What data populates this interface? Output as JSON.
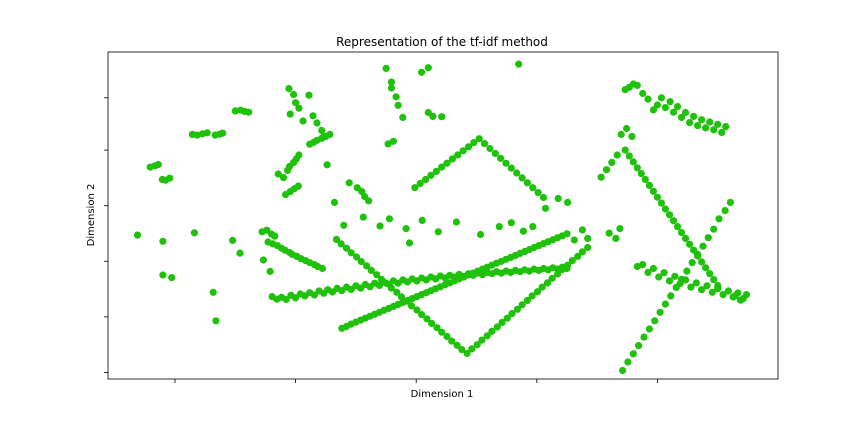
{
  "chart_data": {
    "type": "scatter",
    "title": "Representation of the tf-idf method",
    "xlabel": "Dimension 1",
    "ylabel": "Dimension 2",
    "xlim": [
      0,
      100
    ],
    "ylim": [
      0,
      100
    ],
    "x_tick_values": [
      10,
      28,
      46,
      64,
      82
    ],
    "y_tick_values": [
      2,
      19,
      36,
      53,
      70,
      86
    ],
    "x_tick_labels": [
      "",
      "",
      "",
      "",
      ""
    ],
    "y_tick_labels": [
      "",
      "",
      "",
      "",
      "",
      ""
    ],
    "grid": false,
    "point_color": "#1fc10a",
    "series": [
      {
        "name": "",
        "x": [
          41.5,
          42.3,
          46.8,
          47.8,
          61.3,
          42.3,
          43.0,
          43.3,
          44.0,
          47.8,
          48.5,
          49.8,
          41.8,
          42.6,
          27.0,
          27.7,
          28.0,
          27.2,
          28.5,
          30.0,
          30.6,
          31.2,
          31.9,
          32.2,
          29.1,
          19.0,
          19.8,
          20.4,
          21.0,
          12.6,
          13.3,
          14.1,
          14.8,
          16.0,
          16.7,
          17.1,
          6.3,
          7.0,
          7.5,
          8.1,
          8.6,
          9.2,
          30.1,
          30.7,
          31.2,
          31.9,
          32.5,
          33.1,
          25.4,
          26.2,
          26.8,
          27.1,
          27.7,
          28.1,
          28.5,
          26.5,
          27.2,
          27.8,
          28.4,
          32.7,
          36.0,
          37.2,
          37.9,
          38.3,
          38.9,
          23.0,
          23.7,
          24.4,
          24.9,
          23.9,
          24.6,
          25.3,
          25.9,
          26.4,
          27.1,
          27.5,
          28.2,
          28.8,
          29.5,
          30.1,
          30.8,
          31.3,
          32.0,
          16.1,
          15.7,
          9.5,
          8.2,
          4.4,
          8.2,
          18.6,
          19.7,
          23.2,
          24.2,
          12.9,
          24.5,
          25.2,
          25.9,
          26.6,
          27.3,
          28.0,
          28.7,
          29.4,
          30.1,
          30.8,
          31.5,
          32.2,
          32.8,
          33.5,
          34.2,
          34.9,
          35.6,
          36.3,
          37.0,
          37.7,
          38.4,
          39.1,
          39.8,
          40.5,
          41.2,
          41.9,
          42.6,
          43.3,
          44.0,
          44.7,
          45.4,
          46.1,
          46.8,
          47.5,
          48.2,
          48.9,
          49.6,
          50.3,
          51.0,
          51.7,
          52.4,
          53.1,
          53.8,
          54.5,
          55.2,
          55.9,
          56.6,
          57.3,
          58.0,
          58.7,
          59.4,
          60.1,
          60.8,
          61.5,
          62.2,
          62.9,
          63.6,
          64.3,
          65.0,
          65.7,
          66.4,
          67.1,
          67.8,
          68.5,
          34.9,
          35.6,
          36.3,
          37.0,
          37.7,
          38.4,
          39.1,
          39.8,
          40.5,
          41.2,
          41.9,
          42.6,
          43.3,
          44.0,
          44.7,
          45.4,
          46.1,
          46.8,
          47.5,
          48.2,
          48.9,
          49.6,
          50.3,
          51.0,
          51.7,
          52.4,
          53.1,
          53.8,
          54.5,
          55.2,
          55.9,
          56.6,
          57.3,
          58.0,
          58.7,
          59.4,
          60.1,
          60.8,
          61.5,
          62.2,
          62.9,
          63.6,
          64.3,
          65.0,
          65.7,
          66.4,
          67.1,
          67.8,
          68.5,
          34.1,
          34.8,
          35.6,
          36.3,
          37.1,
          37.8,
          38.6,
          39.3,
          40.1,
          40.8,
          41.6,
          42.3,
          43.1,
          43.8,
          44.6,
          45.3,
          46.1,
          46.8,
          47.6,
          48.3,
          49.1,
          49.8,
          50.6,
          51.3,
          52.1,
          52.8,
          53.6,
          54.3,
          55.1,
          55.8,
          56.6,
          57.3,
          58.1,
          58.8,
          59.6,
          60.3,
          61.1,
          61.8,
          62.6,
          63.3,
          64.1,
          64.8,
          65.6,
          66.3,
          67.1,
          67.8,
          68.6,
          69.3,
          70.1,
          70.8,
          71.6,
          45.0,
          45.8,
          46.6,
          47.4,
          48.2,
          49.0,
          49.8,
          50.6,
          51.4,
          52.2,
          53.0,
          53.8,
          54.6,
          55.4,
          56.2,
          57.0,
          57.8,
          58.6,
          59.4,
          60.2,
          61.0,
          61.8,
          62.6,
          63.4,
          64.2,
          65.0,
          33.8,
          35.2,
          38.1,
          40.6,
          42.0,
          44.5,
          46.9,
          49.3,
          52.0,
          55.6,
          58.4,
          60.2,
          62.0,
          63.4,
          65.3,
          67.2,
          68.6,
          69.6,
          70.8,
          71.6,
          74.8,
          75.8,
          76.4,
          77.2,
          77.8,
          78.4,
          79.0,
          79.8,
          80.6,
          81.4,
          82.0,
          82.6,
          83.2,
          83.9,
          84.4,
          85.0,
          85.6,
          86.2,
          86.8,
          87.4,
          88.0,
          88.6,
          89.2,
          89.8,
          90.4,
          91.0,
          91.6,
          92.2,
          76.6,
          77.4,
          78.2,
          79.0,
          79.8,
          80.6,
          81.4,
          82.2,
          83.0,
          83.8,
          84.6,
          85.4,
          86.2,
          87.0,
          87.8,
          88.6,
          89.4,
          90.2,
          91.0,
          91.8,
          92.6,
          93.3,
          94.0,
          94.8,
          95.3,
          94.4,
          93.6,
          92.9,
          92.1,
          91.2,
          90.4,
          89.6,
          88.8,
          88.0,
          87.2,
          86.4,
          85.6,
          84.8,
          84.0,
          83.2,
          82.4,
          81.6,
          80.8,
          80.0,
          79.2,
          78.4,
          77.6,
          76.8,
          76.0,
          75.2,
          74.4,
          73.6,
          77.2,
          77.8,
          78.4,
          79.0,
          79.6,
          80.2,
          80.8,
          81.4,
          82.0,
          82.6,
          83.2,
          83.8,
          84.4,
          85.0,
          85.6,
          86.2,
          86.8,
          87.4,
          88.0,
          88.6,
          89.2,
          89.8,
          90.4,
          91.0
        ],
        "y": [
          95.0,
          90.8,
          93.8,
          95.2,
          96.3,
          89.0,
          86.3,
          83.7,
          80.0,
          81.5,
          80.3,
          80.2,
          71.9,
          72.7,
          88.8,
          87.0,
          84.5,
          81.0,
          82.8,
          86.8,
          80.5,
          78.3,
          76.0,
          74.0,
          78.9,
          82.0,
          82.2,
          81.8,
          81.6,
          74.8,
          74.6,
          75.0,
          75.3,
          74.6,
          74.9,
          75.2,
          64.8,
          65.2,
          65.6,
          61.0,
          60.8,
          61.4,
          71.8,
          72.4,
          73.0,
          73.6,
          74.2,
          74.8,
          62.7,
          61.6,
          63.8,
          65.0,
          66.2,
          67.3,
          68.5,
          56.4,
          57.3,
          58.2,
          59.0,
          65.5,
          60.0,
          58.5,
          57.3,
          55.8,
          54.5,
          45.0,
          45.5,
          44.3,
          43.7,
          41.9,
          41.3,
          40.8,
          40.0,
          39.4,
          38.7,
          38.1,
          37.5,
          36.8,
          36.2,
          35.6,
          35.0,
          34.4,
          33.8,
          17.8,
          26.5,
          31.0,
          31.8,
          44.0,
          42.1,
          42.4,
          38.5,
          36.4,
          32.9,
          44.7,
          25.2,
          24.4,
          25.0,
          24.3,
          25.6,
          24.8,
          26.0,
          25.4,
          26.4,
          25.7,
          26.9,
          26.2,
          27.3,
          26.6,
          27.7,
          27.0,
          28.1,
          27.4,
          28.5,
          27.8,
          28.9,
          28.2,
          29.3,
          28.6,
          29.6,
          29.0,
          30.0,
          29.3,
          30.3,
          29.7,
          30.6,
          30.0,
          30.9,
          30.3,
          31.2,
          30.6,
          31.5,
          30.9,
          31.7,
          31.2,
          32.0,
          31.4,
          32.2,
          31.7,
          32.4,
          31.9,
          32.6,
          32.2,
          32.8,
          32.4,
          33.0,
          32.6,
          33.2,
          32.8,
          33.4,
          33.0,
          33.6,
          33.2,
          33.8,
          33.4,
          34.0,
          33.6,
          34.2,
          33.8,
          15.5,
          16.1,
          16.8,
          17.4,
          18.0,
          18.6,
          19.2,
          19.8,
          20.4,
          21.0,
          21.6,
          22.2,
          22.8,
          23.4,
          24.0,
          24.6,
          25.2,
          25.8,
          26.4,
          27.0,
          27.6,
          28.2,
          28.8,
          29.4,
          30.0,
          30.6,
          31.2,
          31.8,
          32.4,
          33.0,
          33.6,
          34.2,
          34.8,
          35.4,
          36.0,
          36.6,
          37.2,
          37.8,
          38.4,
          39.0,
          39.6,
          40.2,
          40.8,
          41.4,
          42.0,
          42.6,
          43.2,
          43.8,
          44.4,
          42.7,
          41.3,
          40.0,
          38.6,
          37.3,
          35.9,
          34.6,
          33.2,
          31.9,
          30.5,
          29.2,
          27.8,
          26.5,
          25.1,
          23.8,
          22.4,
          21.1,
          19.7,
          18.4,
          17.0,
          15.7,
          14.3,
          13.0,
          11.6,
          10.3,
          9.0,
          7.8,
          9.2,
          10.5,
          11.9,
          13.2,
          14.6,
          15.9,
          17.3,
          18.6,
          20.0,
          21.3,
          22.7,
          24.0,
          25.4,
          26.7,
          28.1,
          29.4,
          30.8,
          32.1,
          33.5,
          34.8,
          36.2,
          37.5,
          38.9,
          40.2,
          41.6,
          58.5,
          59.8,
          61.0,
          62.3,
          63.5,
          64.8,
          66.0,
          67.3,
          68.5,
          69.8,
          71.0,
          72.3,
          73.5,
          72.0,
          70.5,
          69.0,
          67.5,
          66.0,
          64.5,
          63.0,
          61.5,
          60.0,
          58.5,
          57.0,
          55.5,
          54.0,
          47.0,
          49.5,
          46.8,
          49.0,
          46.0,
          48.5,
          45.0,
          48.0,
          44.2,
          46.6,
          47.8,
          45.2,
          46.6,
          52.2,
          55.2,
          54.0,
          42.5,
          45.6,
          43.0,
          44.6,
          43.0,
          46.0,
          88.5,
          89.2,
          90.2,
          89.8,
          87.3,
          85.6,
          82.3,
          83.8,
          86.0,
          83.0,
          84.8,
          81.6,
          83.3,
          80.0,
          81.5,
          78.4,
          80.3,
          77.5,
          79.3,
          76.8,
          78.6,
          76.2,
          77.9,
          75.4,
          77.2,
          74.8,
          76.6,
          74.2,
          34.4,
          35.0,
          32.6,
          33.8,
          31.2,
          32.5,
          30.0,
          31.4,
          29.2,
          30.3,
          28.1,
          29.4,
          27.3,
          28.5,
          26.5,
          27.6,
          25.8,
          26.9,
          25.1,
          26.3,
          24.6,
          25.8,
          24.1,
          25.4,
          54.0,
          51.5,
          49.0,
          45.8,
          43.2,
          40.6,
          38.1,
          35.6,
          33.0,
          30.5,
          28.0,
          25.4,
          22.9,
          20.4,
          17.8,
          15.3,
          12.8,
          10.2,
          7.7,
          5.2,
          2.6,
          68.5,
          66.2,
          64.0,
          61.7,
          70.0,
          68.2,
          66.4,
          64.6,
          62.8,
          61.0,
          59.2,
          57.4,
          55.6,
          53.8,
          52.0,
          50.2,
          48.4,
          46.6,
          44.8,
          43.0,
          41.2,
          39.4,
          37.6,
          35.8,
          34.0,
          32.2,
          30.4,
          28.6
        ]
      }
    ]
  }
}
